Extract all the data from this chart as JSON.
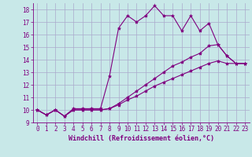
{
  "xlabel": "Windchill (Refroidissement éolien,°C)",
  "background_color": "#c8e8e8",
  "grid_color": "#aaaacc",
  "line_color": "#800080",
  "xlim": [
    -0.5,
    23.5
  ],
  "ylim": [
    9,
    18.5
  ],
  "xticks": [
    0,
    1,
    2,
    3,
    4,
    5,
    6,
    7,
    8,
    9,
    10,
    11,
    12,
    13,
    14,
    15,
    16,
    17,
    18,
    19,
    20,
    21,
    22,
    23
  ],
  "yticks": [
    9,
    10,
    11,
    12,
    13,
    14,
    15,
    16,
    17,
    18
  ],
  "series1_x": [
    0,
    1,
    2,
    3,
    4,
    5,
    6,
    7,
    8,
    9,
    10,
    11,
    12,
    13,
    14,
    15,
    16,
    17,
    18,
    19,
    20,
    21,
    22,
    23
  ],
  "series1_y": [
    10.0,
    9.6,
    10.0,
    9.5,
    10.1,
    10.1,
    10.1,
    10.1,
    12.7,
    16.5,
    17.5,
    17.0,
    17.5,
    18.3,
    17.5,
    17.5,
    16.3,
    17.5,
    16.3,
    16.9,
    15.2,
    14.3,
    13.7,
    13.7
  ],
  "series2_x": [
    0,
    1,
    2,
    3,
    4,
    5,
    6,
    7,
    8,
    9,
    10,
    11,
    12,
    13,
    14,
    15,
    16,
    17,
    18,
    19,
    20,
    21,
    22,
    23
  ],
  "series2_y": [
    10.0,
    9.6,
    10.0,
    9.5,
    10.0,
    10.0,
    10.0,
    10.0,
    10.1,
    10.5,
    11.0,
    11.5,
    12.0,
    12.5,
    13.0,
    13.5,
    13.8,
    14.2,
    14.5,
    15.1,
    15.2,
    14.3,
    13.7,
    13.7
  ],
  "series3_x": [
    0,
    1,
    2,
    3,
    4,
    5,
    6,
    7,
    8,
    9,
    10,
    11,
    12,
    13,
    14,
    15,
    16,
    17,
    18,
    19,
    20,
    21,
    22,
    23
  ],
  "series3_y": [
    10.0,
    9.6,
    10.0,
    9.5,
    10.0,
    10.0,
    10.0,
    10.0,
    10.1,
    10.4,
    10.8,
    11.1,
    11.5,
    11.9,
    12.2,
    12.5,
    12.8,
    13.1,
    13.4,
    13.7,
    13.9,
    13.7,
    13.7,
    13.7
  ],
  "marker": "*",
  "markersize": 3,
  "linewidth": 0.8,
  "xlabel_fontsize": 6,
  "tick_fontsize": 5.5
}
